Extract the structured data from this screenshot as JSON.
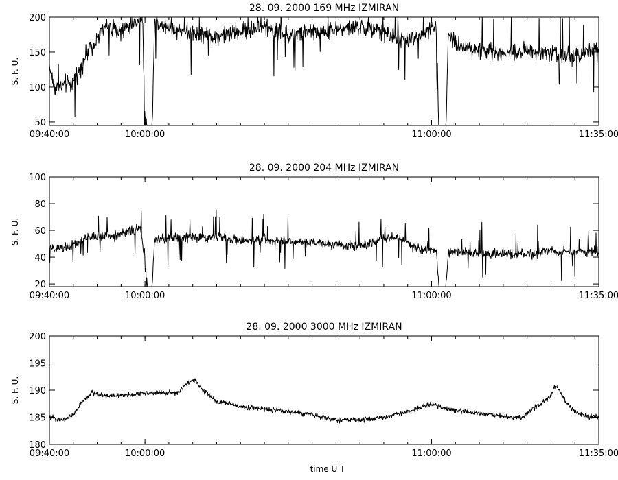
{
  "xlabel": "time   U T",
  "chart_data": [
    {
      "type": "line",
      "title": "28.  09.  2000    169  MHz    IZMIRAN",
      "xlabel": "",
      "ylabel": "S. F. U.",
      "xlim": [
        "09:40:00",
        "11:35:00"
      ],
      "ylim": [
        45,
        200
      ],
      "x_ticks": [
        "09:40:00",
        "10:00:00",
        "11:00:00",
        "11:35:00"
      ],
      "y_ticks": [
        50,
        100,
        150,
        200
      ],
      "grid": false,
      "series": [
        {
          "color": "#000000",
          "noise": 12,
          "spike_prob": 0.03,
          "clip_max": 200,
          "points": [
            [
              "09:40:00",
              130
            ],
            [
              "09:41:00",
              100
            ],
            [
              "09:43:00",
              102
            ],
            [
              "09:45:00",
              108
            ],
            [
              "09:46:30",
              128
            ],
            [
              "09:48:00",
              150
            ],
            [
              "09:50:00",
              170
            ],
            [
              "09:52:00",
              188
            ],
            [
              "09:55:00",
              180
            ],
            [
              "09:57:00",
              190
            ],
            [
              "09:59:30",
              198
            ],
            [
              "10:00:00",
              50
            ],
            [
              "10:00:30",
              45
            ],
            [
              "10:01:30",
              45
            ],
            [
              "10:02:00",
              195
            ],
            [
              "10:05:00",
              185
            ],
            [
              "10:10:00",
              178
            ],
            [
              "10:15:00",
              172
            ],
            [
              "10:20:00",
              180
            ],
            [
              "10:25:00",
              185
            ],
            [
              "10:30:00",
              175
            ],
            [
              "10:35:00",
              178
            ],
            [
              "10:40:00",
              182
            ],
            [
              "10:45:00",
              186
            ],
            [
              "10:50:00",
              178
            ],
            [
              "10:53:00",
              170
            ],
            [
              "10:55:00",
              165
            ],
            [
              "10:58:00",
              175
            ],
            [
              "11:00:00",
              185
            ],
            [
              "11:01:00",
              185
            ],
            [
              "11:01:30",
              45
            ],
            [
              "11:03:00",
              45
            ],
            [
              "11:03:30",
              175
            ],
            [
              "11:06:00",
              160
            ],
            [
              "11:10:00",
              152
            ],
            [
              "11:15:00",
              148
            ],
            [
              "11:20:00",
              152
            ],
            [
              "11:25:00",
              150
            ],
            [
              "11:28:00",
              145
            ],
            [
              "11:31:00",
              142
            ],
            [
              "11:33:00",
              155
            ],
            [
              "11:35:00",
              150
            ]
          ]
        }
      ]
    },
    {
      "type": "line",
      "title": "28.  09.  2000    204  MHz    IZMIRAN",
      "xlabel": "",
      "ylabel": "S. F. U.",
      "xlim": [
        "09:40:00",
        "11:35:00"
      ],
      "ylim": [
        18,
        100
      ],
      "x_ticks": [
        "09:40:00",
        "10:00:00",
        "11:00:00",
        "11:35:00"
      ],
      "y_ticks": [
        20,
        40,
        60,
        80,
        100
      ],
      "grid": false,
      "series": [
        {
          "color": "#000000",
          "noise": 3.5,
          "spike_prob": 0.04,
          "clip_max": 100,
          "points": [
            [
              "09:40:00",
              46
            ],
            [
              "09:43:00",
              47
            ],
            [
              "09:46:00",
              50
            ],
            [
              "09:48:00",
              55
            ],
            [
              "09:52:00",
              56
            ],
            [
              "09:55:00",
              57
            ],
            [
              "09:57:00",
              60
            ],
            [
              "09:59:00",
              61
            ],
            [
              "10:00:00",
              40
            ],
            [
              "10:00:30",
              18
            ],
            [
              "10:01:30",
              18
            ],
            [
              "10:02:00",
              52
            ],
            [
              "10:05:00",
              54
            ],
            [
              "10:10:00",
              55
            ],
            [
              "10:15:00",
              55
            ],
            [
              "10:20:00",
              52
            ],
            [
              "10:25:00",
              53
            ],
            [
              "10:30:00",
              52
            ],
            [
              "10:35:00",
              51
            ],
            [
              "10:40:00",
              50
            ],
            [
              "10:45:00",
              48
            ],
            [
              "10:50:00",
              55
            ],
            [
              "10:53:00",
              55
            ],
            [
              "10:56:00",
              48
            ],
            [
              "10:59:00",
              45
            ],
            [
              "11:00:00",
              45
            ],
            [
              "11:01:00",
              45
            ],
            [
              "11:01:30",
              18
            ],
            [
              "11:03:00",
              18
            ],
            [
              "11:03:30",
              44
            ],
            [
              "11:10:00",
              43
            ],
            [
              "11:15:00",
              42
            ],
            [
              "11:20:00",
              42
            ],
            [
              "11:25:00",
              44
            ],
            [
              "11:30:00",
              44
            ],
            [
              "11:35:00",
              44
            ]
          ]
        }
      ]
    },
    {
      "type": "line",
      "title": "28.  09.  2000    3000  MHz    IZMIRAN",
      "xlabel": "time   U T",
      "ylabel": "S. F. U.",
      "xlim": [
        "09:40:00",
        "11:35:00"
      ],
      "ylim": [
        180,
        200
      ],
      "x_ticks": [
        "09:40:00",
        "10:00:00",
        "11:00:00",
        "11:35:00"
      ],
      "y_ticks": [
        180,
        185,
        190,
        195,
        200
      ],
      "grid": false,
      "series": [
        {
          "color": "#000000",
          "noise": 0.45,
          "spike_prob": 0.0,
          "clip_max": 200,
          "points": [
            [
              "09:40:00",
              185.0
            ],
            [
              "09:43:00",
              184.5
            ],
            [
              "09:45:00",
              185.5
            ],
            [
              "09:47:00",
              188.0
            ],
            [
              "09:49:00",
              189.5
            ],
            [
              "09:52:00",
              189.0
            ],
            [
              "09:56:00",
              189.0
            ],
            [
              "10:00:00",
              189.5
            ],
            [
              "10:04:00",
              189.5
            ],
            [
              "10:07:00",
              189.5
            ],
            [
              "10:09:00",
              191.5
            ],
            [
              "10:10:30",
              192.0
            ],
            [
              "10:12:00",
              190.0
            ],
            [
              "10:15:00",
              188.0
            ],
            [
              "10:20:00",
              187.0
            ],
            [
              "10:25:00",
              186.5
            ],
            [
              "10:30:00",
              186.0
            ],
            [
              "10:35:00",
              185.5
            ],
            [
              "10:40:00",
              184.5
            ],
            [
              "10:45:00",
              184.5
            ],
            [
              "10:50:00",
              185.0
            ],
            [
              "10:55:00",
              186.0
            ],
            [
              "11:00:00",
              187.5
            ],
            [
              "11:03:00",
              186.5
            ],
            [
              "11:08:00",
              186.0
            ],
            [
              "11:12:00",
              185.5
            ],
            [
              "11:16:00",
              185.0
            ],
            [
              "11:19:00",
              185.0
            ],
            [
              "11:22:00",
              187.0
            ],
            [
              "11:25:00",
              189.0
            ],
            [
              "11:26:00",
              191.0
            ],
            [
              "11:28:00",
              188.0
            ],
            [
              "11:30:00",
              186.0
            ],
            [
              "11:33:00",
              185.0
            ],
            [
              "11:35:00",
              185.0
            ]
          ]
        }
      ]
    }
  ]
}
